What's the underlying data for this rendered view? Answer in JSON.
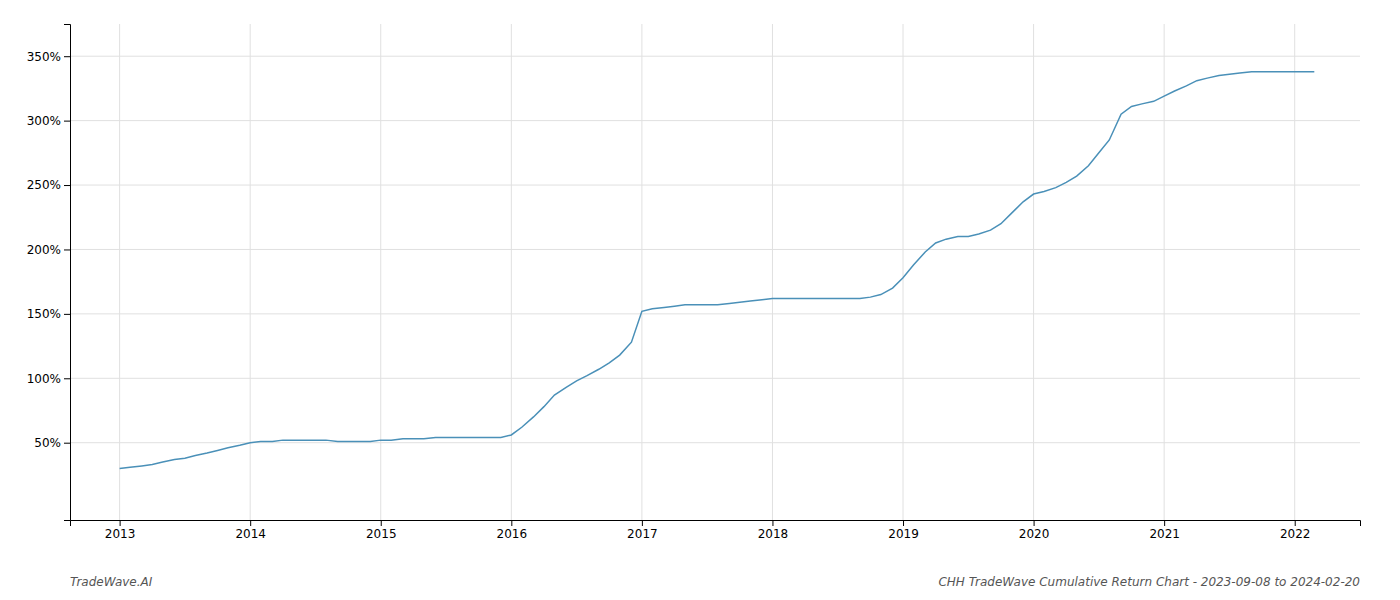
{
  "chart_data": {
    "type": "line",
    "annotations": [
      "TradeWave.AI",
      "CHH TradeWave Cumulative Return Chart - 2023-09-08 to 2024-02-20"
    ],
    "color": "#4a90b8",
    "grid": true,
    "x": [
      2013.0,
      2013.08,
      2013.17,
      2013.25,
      2013.33,
      2013.42,
      2013.5,
      2013.58,
      2013.67,
      2013.75,
      2013.83,
      2013.92,
      2014.0,
      2014.08,
      2014.17,
      2014.25,
      2014.33,
      2014.42,
      2014.5,
      2014.58,
      2014.67,
      2014.75,
      2014.83,
      2014.92,
      2015.0,
      2015.08,
      2015.17,
      2015.25,
      2015.33,
      2015.42,
      2015.5,
      2015.58,
      2015.67,
      2015.75,
      2015.83,
      2015.92,
      2016.0,
      2016.08,
      2016.17,
      2016.25,
      2016.33,
      2016.42,
      2016.5,
      2016.58,
      2016.67,
      2016.75,
      2016.83,
      2016.92,
      2017.0,
      2017.08,
      2017.17,
      2017.25,
      2017.33,
      2017.42,
      2017.5,
      2017.58,
      2017.67,
      2017.75,
      2017.83,
      2017.92,
      2018.0,
      2018.08,
      2018.17,
      2018.25,
      2018.33,
      2018.42,
      2018.5,
      2018.58,
      2018.67,
      2018.75,
      2018.83,
      2018.92,
      2019.0,
      2019.08,
      2019.17,
      2019.25,
      2019.33,
      2019.42,
      2019.5,
      2019.58,
      2019.67,
      2019.75,
      2019.83,
      2019.92,
      2020.0,
      2020.08,
      2020.17,
      2020.25,
      2020.33,
      2020.42,
      2020.5,
      2020.58,
      2020.67,
      2020.75,
      2020.83,
      2020.92,
      2021.0,
      2021.08,
      2021.17,
      2021.25,
      2021.33,
      2021.42,
      2021.5,
      2021.58,
      2021.67,
      2021.75,
      2021.83,
      2021.92,
      2022.0,
      2022.08,
      2022.15
    ],
    "values": [
      30,
      31,
      32,
      33,
      35,
      37,
      38,
      40,
      42,
      44,
      46,
      48,
      50,
      51,
      51,
      52,
      52,
      52,
      52,
      52,
      51,
      51,
      51,
      51,
      52,
      52,
      53,
      53,
      53,
      54,
      54,
      54,
      54,
      54,
      54,
      54,
      56,
      62,
      70,
      78,
      87,
      93,
      98,
      102,
      107,
      112,
      118,
      128,
      152,
      154,
      155,
      156,
      157,
      157,
      157,
      157,
      158,
      159,
      160,
      161,
      162,
      162,
      162,
      162,
      162,
      162,
      162,
      162,
      162,
      163,
      165,
      170,
      178,
      188,
      198,
      205,
      208,
      210,
      210,
      212,
      215,
      220,
      228,
      237,
      243,
      245,
      248,
      252,
      257,
      265,
      275,
      285,
      305,
      311,
      313,
      315,
      319,
      323,
      327,
      331,
      333,
      335,
      336,
      337,
      338,
      338,
      338,
      338,
      338,
      338,
      338
    ],
    "xlim": [
      2012.62,
      2022.5
    ],
    "xticks": [
      2013,
      2014,
      2015,
      2016,
      2017,
      2018,
      2019,
      2020,
      2021,
      2022
    ],
    "ylim": [
      -10,
      375
    ],
    "yticks": [
      {
        "value": 50,
        "label": "50%"
      },
      {
        "value": 100,
        "label": "100%"
      },
      {
        "value": 150,
        "label": "150%"
      },
      {
        "value": 200,
        "label": "200%"
      },
      {
        "value": 250,
        "label": "250%"
      },
      {
        "value": 300,
        "label": "300%"
      },
      {
        "value": 350,
        "label": "350%"
      }
    ]
  }
}
